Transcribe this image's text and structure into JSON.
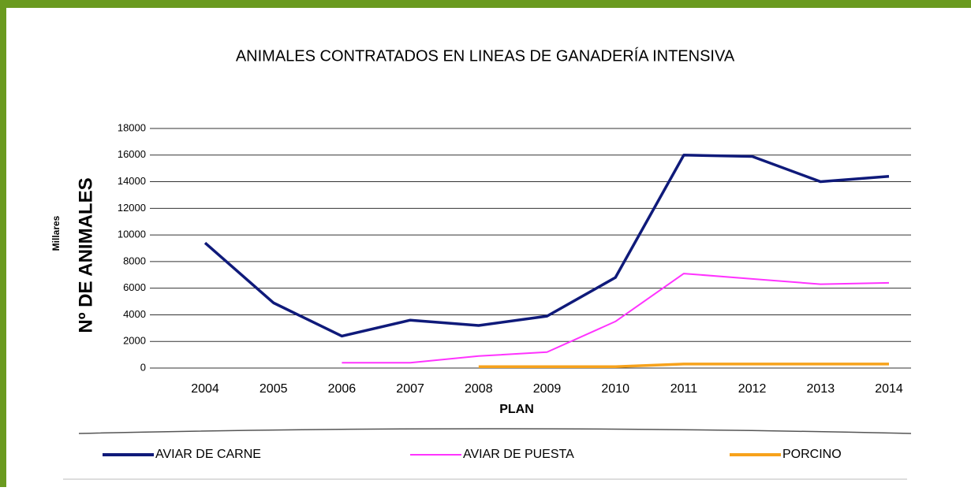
{
  "chart_data": {
    "type": "line",
    "title": "ANIMALES CONTRATADOS EN LINEAS DE GANADERÍA INTENSIVA",
    "y_label": "Nº DE ANIMALES",
    "y_unit": "Millares",
    "x_label": "PLAN",
    "categories": [
      "2004",
      "2005",
      "2006",
      "2007",
      "2008",
      "2009",
      "2010",
      "2011",
      "2012",
      "2013",
      "2014"
    ],
    "series": [
      {
        "name": "AVIAR DE CARNE",
        "color": "#0f1a7a",
        "values": [
          9400,
          4900,
          2400,
          3600,
          3200,
          3900,
          6800,
          16000,
          15900,
          14000,
          14400
        ]
      },
      {
        "name": "AVIAR DE PUESTA",
        "color": "#ff33ff",
        "values": [
          null,
          null,
          400,
          400,
          900,
          1200,
          3500,
          7100,
          6700,
          6300,
          6400
        ]
      },
      {
        "name": "PORCINO",
        "color": "#f7a21b",
        "values": [
          null,
          null,
          null,
          null,
          100,
          100,
          100,
          300,
          300,
          300,
          300
        ]
      }
    ],
    "ylim": [
      0,
      18000
    ],
    "yticks": [
      0,
      2000,
      4000,
      6000,
      8000,
      10000,
      12000,
      14000,
      16000,
      18000
    ],
    "grid": true,
    "legend": "bottom"
  }
}
